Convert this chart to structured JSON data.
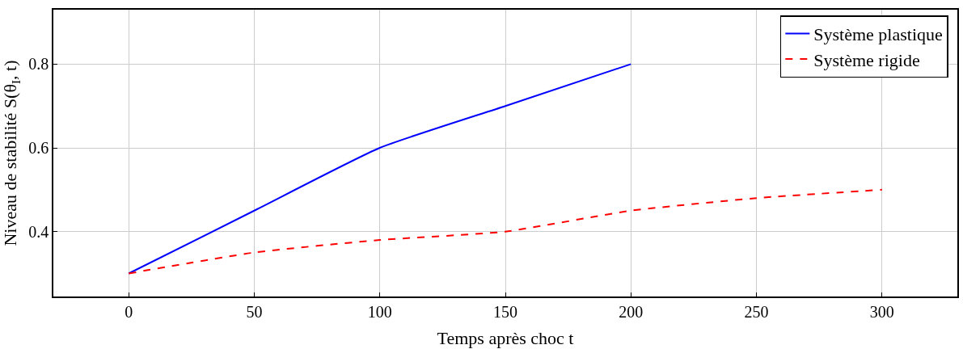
{
  "chart_data": {
    "type": "line",
    "xlabel": "Temps après choc t",
    "ylabel": "Niveau de stabilité S(θ$_{I}$, t)",
    "x": [
      0,
      50,
      100,
      150,
      200,
      250,
      300
    ],
    "series": [
      {
        "name": "Système plastique",
        "color": "#0000ff",
        "line_style": "solid",
        "values": [
          0.3,
          0.45,
          0.6,
          0.7,
          0.8,
          null,
          null
        ]
      },
      {
        "name": "Système rigide",
        "color": "#ff0000",
        "line_style": "dashed",
        "values": [
          0.3,
          0.35,
          0.38,
          0.4,
          0.45,
          0.48,
          0.5
        ]
      }
    ],
    "xlim": [
      -30,
      330
    ],
    "xticks": [
      0,
      50,
      100,
      150,
      200,
      250,
      300
    ],
    "ylim": [
      0.245,
      0.93
    ],
    "yticks": [
      0.4,
      0.6,
      0.8
    ],
    "grid": true,
    "legend": "top right",
    "marker": "none"
  }
}
